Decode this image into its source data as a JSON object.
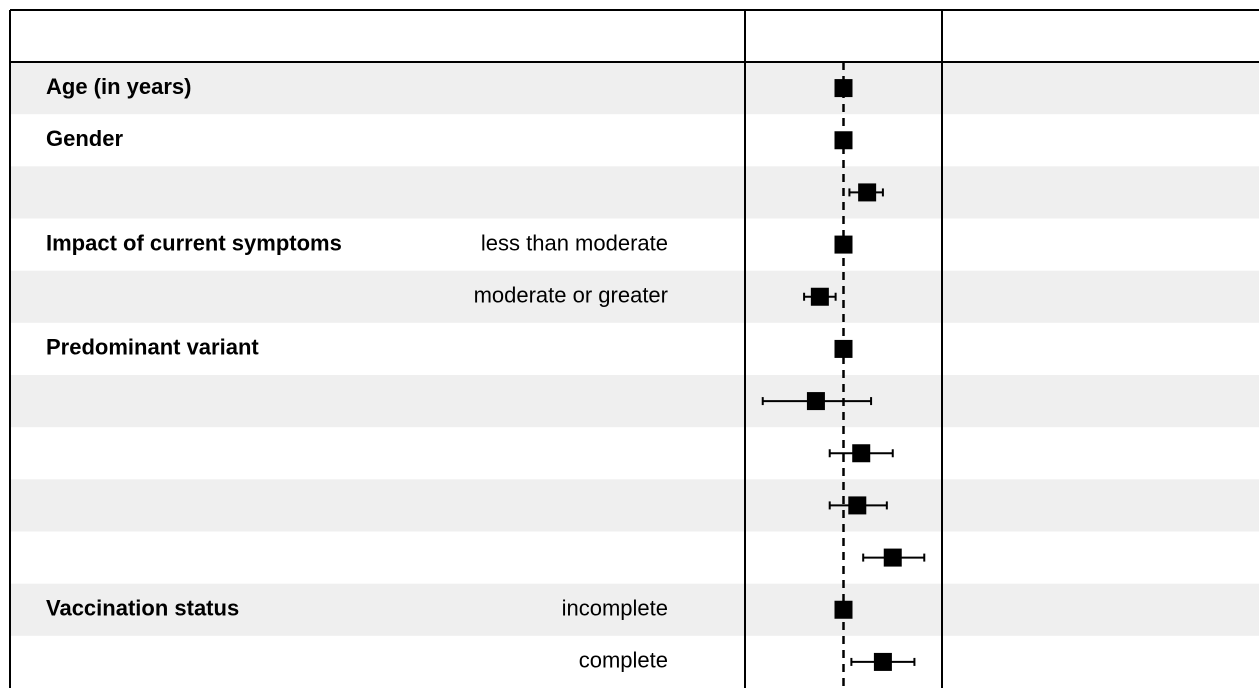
{
  "chart_data": {
    "type": "forest",
    "groups": [
      "Age (in years)",
      "Gender",
      null,
      "Impact of current symptoms",
      null,
      "Predominant variant",
      null,
      null,
      null,
      null,
      "Vaccination status",
      null
    ],
    "levels": [
      null,
      null,
      null,
      "less than moderate",
      "moderate or greater",
      null,
      null,
      null,
      null,
      null,
      "incomplete",
      "complete"
    ],
    "values": [
      1.0,
      1.0,
      1.12,
      1.0,
      0.88,
      1.0,
      0.86,
      1.09,
      1.07,
      1.25,
      1.0,
      1.2
    ],
    "lower": [
      null,
      null,
      1.03,
      null,
      0.8,
      null,
      0.59,
      0.93,
      0.93,
      1.1,
      null,
      1.04
    ],
    "upper": [
      null,
      null,
      1.2,
      null,
      0.96,
      null,
      1.14,
      1.25,
      1.22,
      1.41,
      null,
      1.36
    ],
    "reference": 1,
    "xlim": [
      0.5,
      1.5
    ],
    "color": "#000000",
    "stripe_color": "#efefef"
  }
}
